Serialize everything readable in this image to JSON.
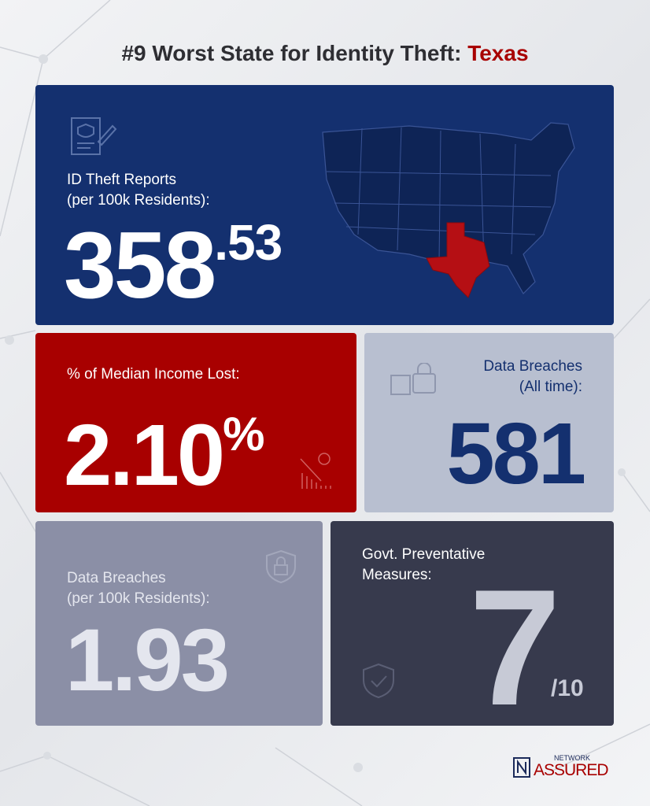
{
  "header": {
    "title": "#9 Worst State for Identity Theft: ",
    "highlight": "Texas"
  },
  "cards": [
    {
      "label": [
        "ID Theft Reports",
        "(per 100k Residents):"
      ],
      "value": "358",
      "suffix": ".53"
    },
    {
      "label": [
        "% of Median Income Lost:"
      ],
      "value": "2.10",
      "suffix": "%"
    },
    {
      "label": [
        "Data Breaches",
        "(All time):"
      ],
      "value": "581"
    },
    {
      "label": [
        "Data Breaches",
        "(per 100k Residents):"
      ],
      "value": "1.93"
    },
    {
      "label": [
        "Govt. Preventative",
        "Measures:"
      ],
      "value": "7",
      "suffix": "/10"
    }
  ],
  "logo": {
    "top": "NETWORK",
    "bottom": "ASSURED"
  }
}
